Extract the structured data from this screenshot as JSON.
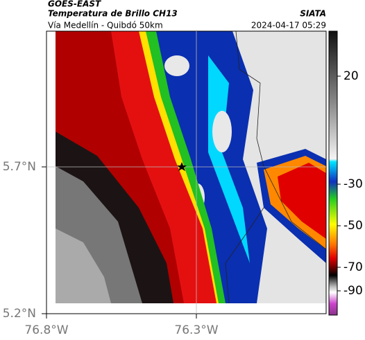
{
  "header": {
    "title": "GOES-EAST",
    "subtitle": "Temperatura de Brillo CH13",
    "brand": "SIATA",
    "region": "Vía Medellín - Quibdó 50km",
    "datetime": "2024-04-17 05:29"
  },
  "map": {
    "lat_ticks": [
      {
        "value": 5.7,
        "label": "5.7°N"
      },
      {
        "value": 5.2,
        "label": "5.2°N"
      }
    ],
    "lon_ticks": [
      {
        "value": -76.8,
        "label": "76.8°W"
      },
      {
        "value": -76.3,
        "label": "76.3°W"
      }
    ]
  },
  "colorbar": {
    "ticks": [
      20,
      -30,
      -50,
      -70,
      -90
    ]
  }
}
